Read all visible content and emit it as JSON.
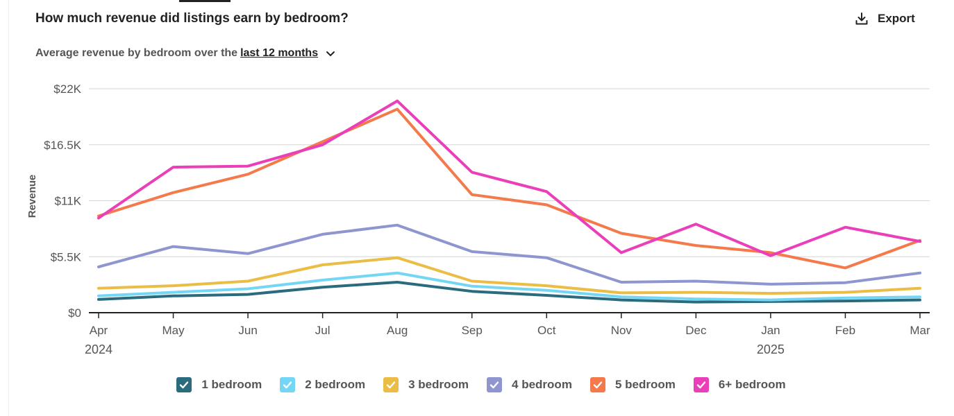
{
  "header": {
    "title": "How much revenue did listings earn by bedroom?",
    "subtitle_prefix": "Average revenue by bedroom over the",
    "subtitle_range": "last 12 months",
    "export_label": "Export"
  },
  "chart_data": {
    "type": "line",
    "title": "How much revenue did listings earn by bedroom?",
    "ylabel": "Revenue",
    "xlabel": "",
    "ylim": [
      0,
      22000
    ],
    "y_ticks": [
      0,
      5500,
      11000,
      16500,
      22000
    ],
    "y_tick_labels": [
      "$0",
      "$5.5K",
      "$11K",
      "$16.5K",
      "$22K"
    ],
    "categories": [
      "Apr",
      "May",
      "Jun",
      "Jul",
      "Aug",
      "Sep",
      "Oct",
      "Nov",
      "Dec",
      "Jan",
      "Feb",
      "Mar"
    ],
    "year_labels": [
      {
        "at": "Apr",
        "label": "2024"
      },
      {
        "at": "Jan",
        "label": "2025"
      }
    ],
    "grid": true,
    "legend_position": "bottom",
    "series": [
      {
        "name": "1 bedroom",
        "color": "#2b6b7e",
        "values": [
          1300,
          1650,
          1800,
          2500,
          3000,
          2100,
          1700,
          1250,
          1050,
          1100,
          1150,
          1250
        ]
      },
      {
        "name": "2 bedroom",
        "color": "#74d6f5",
        "values": [
          1650,
          2000,
          2350,
          3200,
          3900,
          2600,
          2200,
          1550,
          1350,
          1250,
          1450,
          1550
        ]
      },
      {
        "name": "3 bedroom",
        "color": "#ebbd45",
        "values": [
          2400,
          2650,
          3100,
          4700,
          5400,
          3100,
          2650,
          1950,
          2000,
          1900,
          2000,
          2400
        ]
      },
      {
        "name": "4 bedroom",
        "color": "#8e95cf",
        "values": [
          4500,
          6500,
          5800,
          7700,
          8600,
          6000,
          5400,
          3000,
          3100,
          2800,
          2950,
          3900
        ]
      },
      {
        "name": "5 bedroom",
        "color": "#f47a4c",
        "values": [
          9500,
          11800,
          13600,
          16800,
          20000,
          11600,
          10600,
          7800,
          6600,
          5900,
          4400,
          7100
        ]
      },
      {
        "name": "6+ bedroom",
        "color": "#ea3fb8",
        "values": [
          9300,
          14300,
          14400,
          16500,
          20800,
          13800,
          11900,
          5900,
          8700,
          5600,
          8400,
          7000
        ]
      }
    ]
  }
}
